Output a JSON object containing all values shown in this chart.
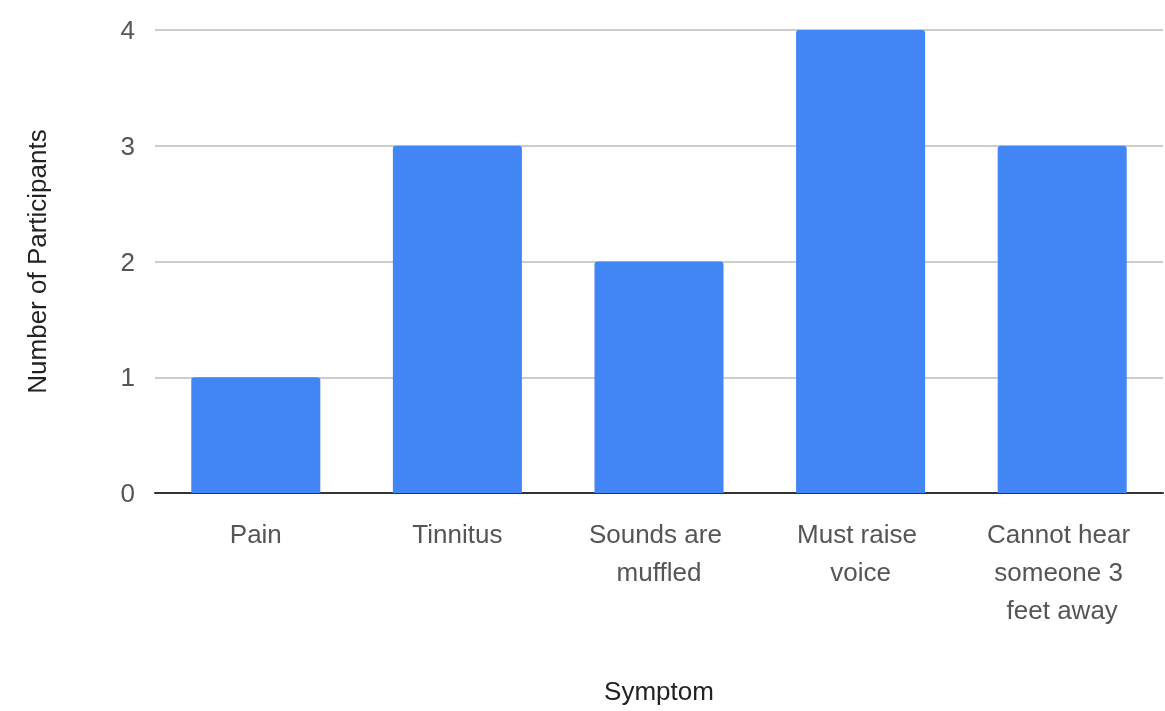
{
  "chart_data": {
    "type": "bar",
    "xlabel": "Symptom",
    "ylabel": "Number of Participants",
    "categories": [
      "Pain",
      "Tinnitus",
      "Sounds are muffled",
      "Must raise voice",
      "Cannot hear someone 3 feet away"
    ],
    "values": [
      1,
      3,
      2,
      4,
      3
    ],
    "color": "#4285f4",
    "ylim": [
      0,
      4
    ],
    "yticks": [
      0,
      1,
      2,
      3,
      4
    ],
    "grid": "y"
  }
}
